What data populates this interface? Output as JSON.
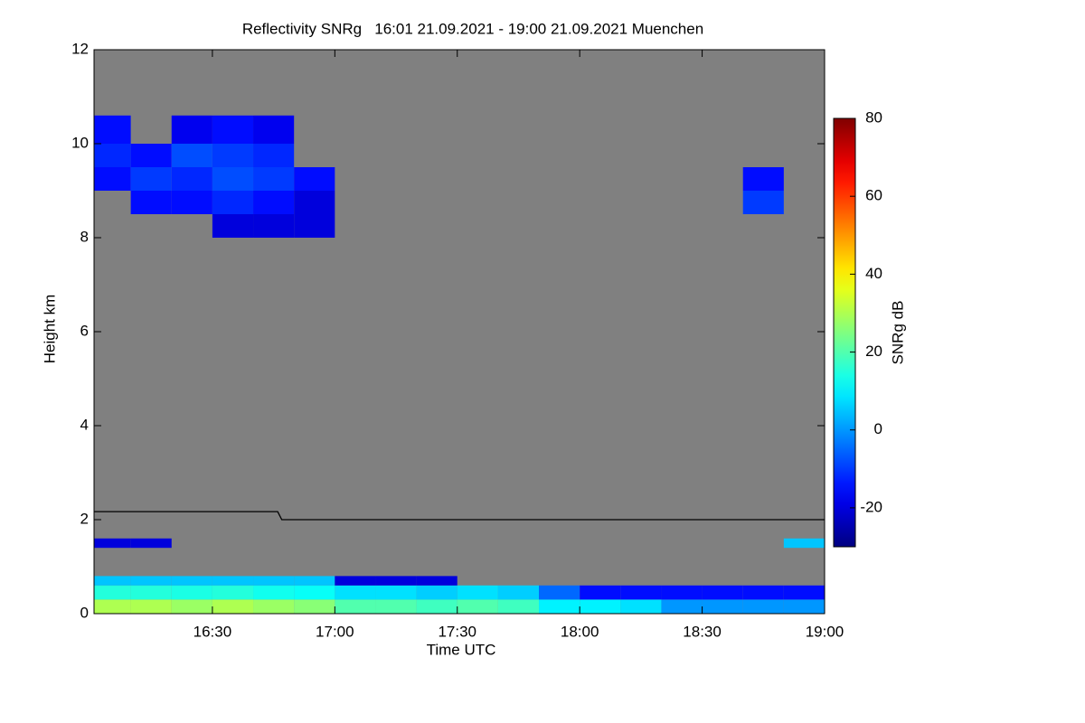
{
  "chart_data": {
    "type": "heatmap",
    "title": "Reflectivity SNRg   16:01 21.09.2021 - 19:00 21.09.2021 Muenchen",
    "x_label": "Time UTC",
    "y_label": "Height km",
    "background": "#808080",
    "xlim": [
      961,
      1140
    ],
    "xticks": [
      {
        "value": 990,
        "label": "16:30"
      },
      {
        "value": 1020,
        "label": "17:00"
      },
      {
        "value": 1050,
        "label": "17:30"
      },
      {
        "value": 1080,
        "label": "18:00"
      },
      {
        "value": 1110,
        "label": "18:30"
      },
      {
        "value": 1140,
        "label": "19:00"
      }
    ],
    "ylim": [
      0,
      12
    ],
    "yticks": [
      0,
      2,
      4,
      6,
      8,
      10,
      12
    ],
    "x_bins": [
      961,
      970,
      980,
      990,
      1000,
      1010,
      1020,
      1030,
      1040,
      1050,
      1060,
      1070,
      1080,
      1090,
      1100,
      1110,
      1120,
      1130,
      1140
    ],
    "y_bins": [
      0,
      0.3,
      0.6,
      0.8,
      1.4,
      1.6,
      3.5,
      3.7,
      8,
      8.5,
      9,
      9.5,
      10,
      10.6,
      12
    ],
    "z": [
      [
        30,
        30,
        28,
        30,
        28,
        26,
        20,
        20,
        18,
        20,
        18,
        10,
        10,
        8,
        0,
        0,
        0,
        0
      ],
      [
        15,
        15,
        14,
        15,
        13,
        12,
        8,
        8,
        6,
        8,
        6,
        -5,
        -15,
        -15,
        -15,
        -15,
        -15,
        -15
      ],
      [
        5,
        5,
        5,
        5,
        5,
        5,
        -20,
        -20,
        -20,
        null,
        null,
        null,
        null,
        null,
        null,
        null,
        null,
        null
      ],
      [
        null,
        null,
        null,
        null,
        null,
        null,
        null,
        null,
        null,
        null,
        null,
        null,
        null,
        null,
        null,
        null,
        null,
        null
      ],
      [
        -20,
        -20,
        null,
        null,
        null,
        null,
        null,
        null,
        null,
        null,
        null,
        null,
        null,
        null,
        null,
        null,
        null,
        5
      ],
      [
        null,
        null,
        null,
        null,
        null,
        null,
        null,
        null,
        null,
        null,
        null,
        null,
        null,
        null,
        null,
        null,
        null,
        null
      ],
      [
        null,
        null,
        null,
        null,
        null,
        null,
        null,
        null,
        null,
        null,
        null,
        null,
        null,
        null,
        null,
        null,
        null,
        null
      ],
      [
        null,
        null,
        null,
        null,
        null,
        null,
        null,
        null,
        null,
        null,
        null,
        null,
        null,
        null,
        null,
        null,
        null,
        null
      ],
      [
        null,
        null,
        null,
        -20,
        -20,
        -20,
        null,
        null,
        null,
        null,
        null,
        null,
        null,
        null,
        null,
        null,
        null,
        null
      ],
      [
        null,
        -15,
        -15,
        -12,
        -15,
        -20,
        null,
        null,
        null,
        null,
        null,
        null,
        null,
        null,
        null,
        null,
        -10,
        null
      ],
      [
        -15,
        -10,
        -12,
        -8,
        -10,
        -15,
        null,
        null,
        null,
        null,
        null,
        null,
        null,
        null,
        null,
        null,
        -15,
        null
      ],
      [
        -12,
        -15,
        -8,
        -10,
        -12,
        null,
        null,
        null,
        null,
        null,
        null,
        null,
        null,
        null,
        null,
        null,
        null,
        null
      ],
      [
        -15,
        null,
        -18,
        -15,
        -18,
        null,
        null,
        null,
        null,
        null,
        null,
        null,
        null,
        null,
        null,
        null,
        null,
        null
      ],
      [
        null,
        null,
        null,
        null,
        null,
        null,
        null,
        null,
        null,
        null,
        null,
        null,
        null,
        null,
        null,
        null,
        null,
        null
      ]
    ],
    "line": {
      "x": [
        961,
        1006,
        1007,
        1140
      ],
      "values": [
        2.17,
        2.17,
        2.0,
        2.0
      ],
      "color": "#000000"
    },
    "colorbar": {
      "label": "SNRg dB",
      "colormap": "jet",
      "lim": [
        -30,
        80
      ],
      "ticks": [
        -20,
        0,
        20,
        40,
        60,
        80
      ]
    }
  }
}
